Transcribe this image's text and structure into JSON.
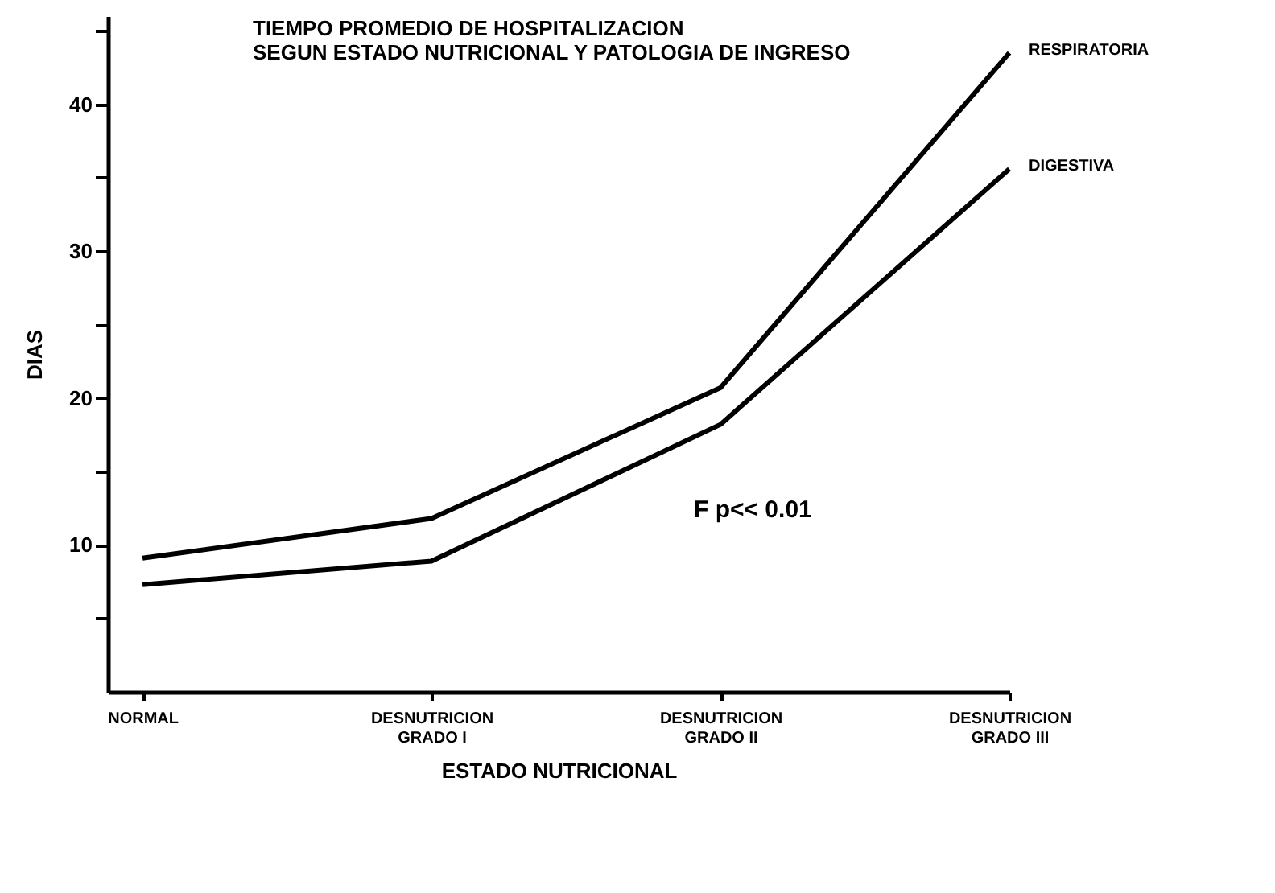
{
  "chart_data": {
    "type": "line",
    "title": "TIEMPO PROMEDIO DE HOSPITALIZACION",
    "subtitle": "SEGUN ESTADO NUTRICIONAL Y PATOLOGIA DE INGRESO",
    "xlabel": "ESTADO NUTRICIONAL",
    "ylabel": "DIAS",
    "categories": [
      "NORMAL",
      "DESNUTRICION\nGRADO I",
      "DESNUTRICION\nGRADO II",
      "DESNUTRICION\nGRADO III"
    ],
    "series": [
      {
        "name": "RESPIRATORIA",
        "color": "#000000",
        "values": [
          9.1,
          11.8,
          20.7,
          43.5
        ]
      },
      {
        "name": "DIGESTIVA",
        "color": "#000000",
        "values": [
          7.3,
          8.9,
          18.2,
          35.6
        ]
      }
    ],
    "ylim": [
      0,
      46
    ],
    "yticks": [
      {
        "value": 5,
        "label": null
      },
      10,
      {
        "value": 15,
        "label": null
      },
      20,
      {
        "value": 25,
        "label": null
      },
      30,
      {
        "value": 35,
        "label": null
      },
      40,
      {
        "value": 45,
        "label": null
      }
    ],
    "annotations": [
      "F p<< 0.01"
    ],
    "grid": false,
    "legend": false,
    "marker": "none",
    "line_style": "solid"
  }
}
